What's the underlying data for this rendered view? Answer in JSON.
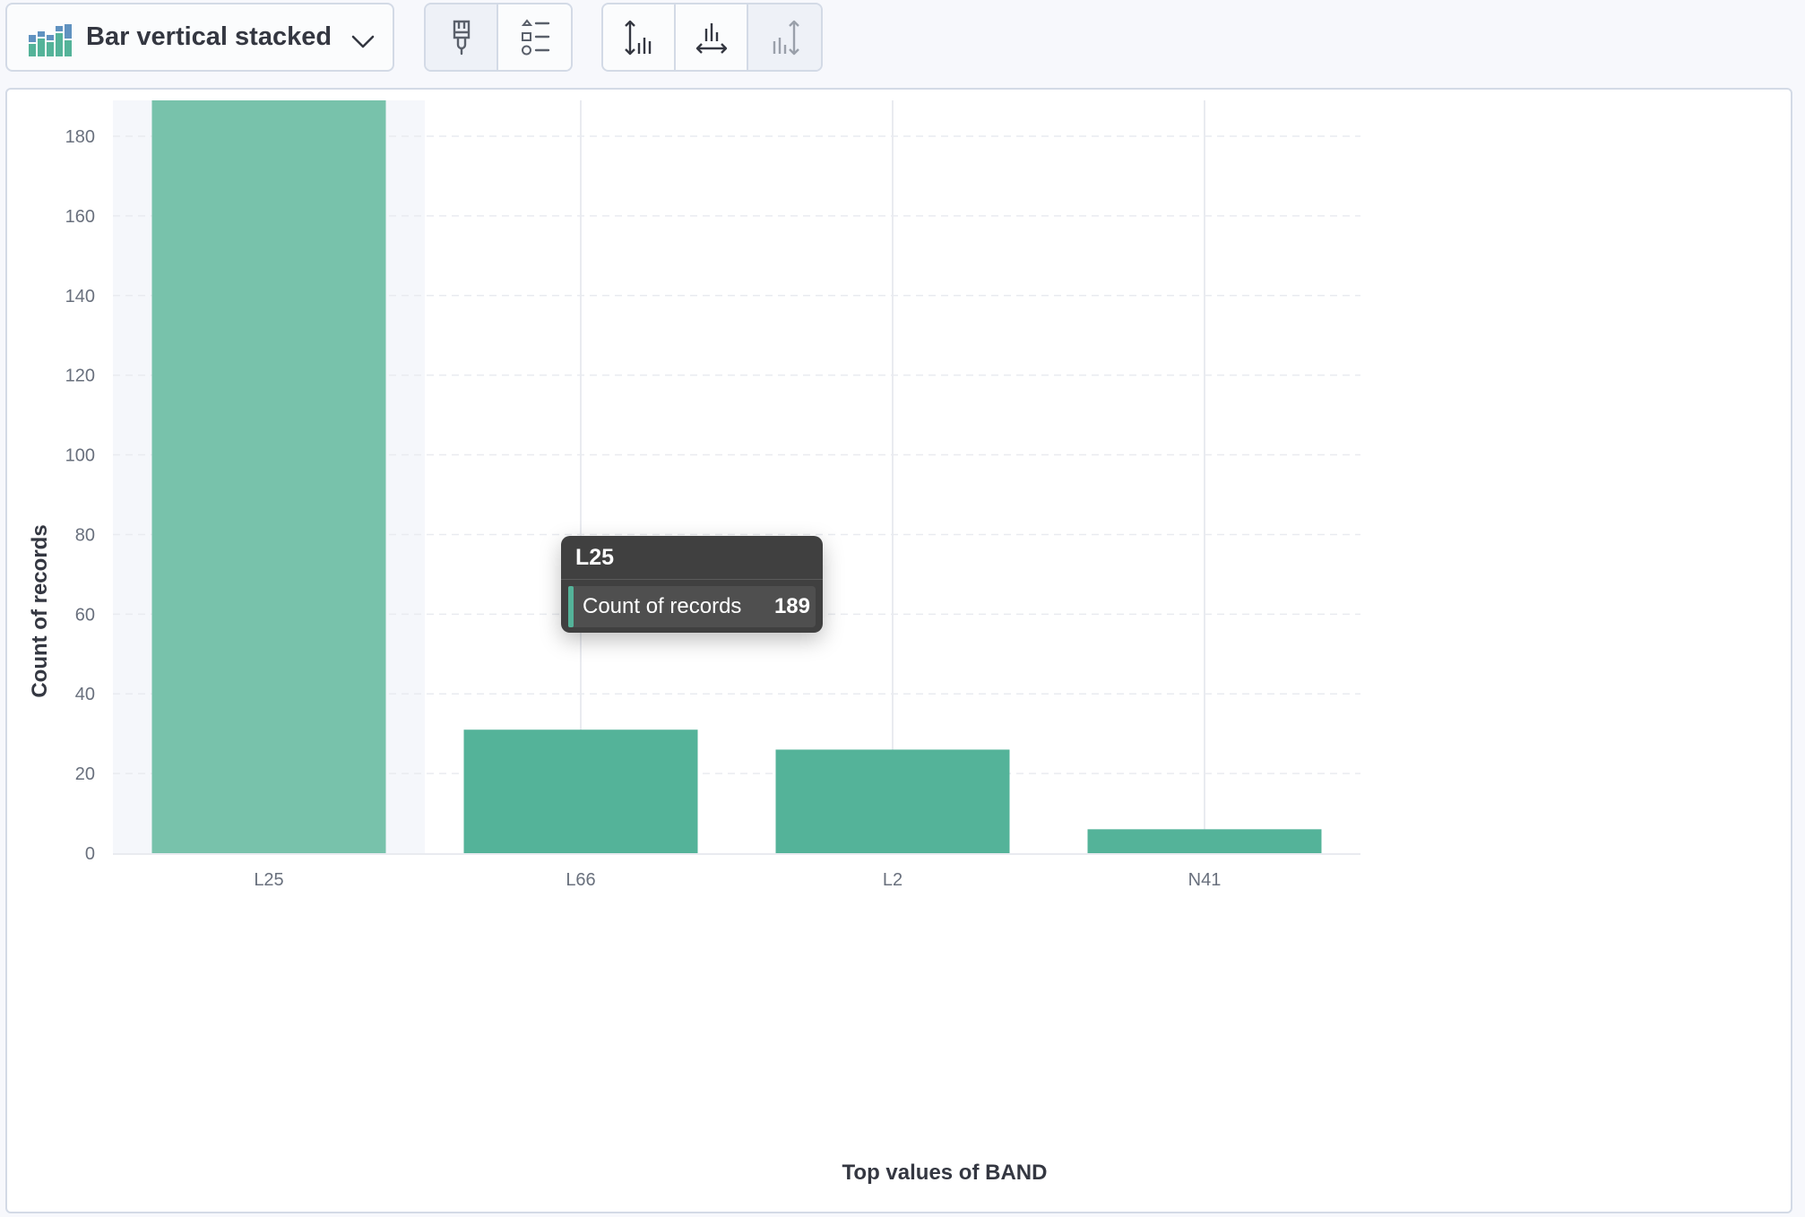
{
  "toolbar": {
    "chart_type_label": "Bar vertical stacked",
    "chart_type_icon": "bar-chart-icon",
    "dropdown_icon": "chevron-down-icon",
    "group1": [
      {
        "name": "visual-options-button",
        "icon": "paintbrush-icon"
      },
      {
        "name": "legend-button",
        "icon": "legend-list-icon"
      }
    ],
    "group2": [
      {
        "name": "left-axis-button",
        "icon": "left-axis-icon"
      },
      {
        "name": "bottom-axis-button",
        "icon": "bottom-axis-icon"
      },
      {
        "name": "right-axis-button",
        "icon": "right-axis-icon",
        "disabled": true
      }
    ]
  },
  "chart_data": {
    "type": "bar",
    "categories": [
      "L25",
      "L66",
      "L2",
      "N41"
    ],
    "series": [
      {
        "values": [
          189,
          31,
          26,
          6
        ],
        "color": "#54b399"
      }
    ],
    "xlabel": "Top values of BAND",
    "ylabel": "Count of records",
    "ylim": [
      0,
      189
    ],
    "yticks": [
      0,
      20,
      40,
      60,
      80,
      100,
      120,
      140,
      160,
      180
    ],
    "grid": true,
    "highlighted_category": "L25"
  },
  "tooltip": {
    "header": "L25",
    "series_label": "Count of records",
    "value": "189",
    "swatch_color": "#54b399"
  },
  "colors": {
    "bar": "#54b399",
    "bar_highlight": "#78c2ab",
    "hover_band": "#f5f7fb",
    "grid": "#e9ebf0"
  }
}
